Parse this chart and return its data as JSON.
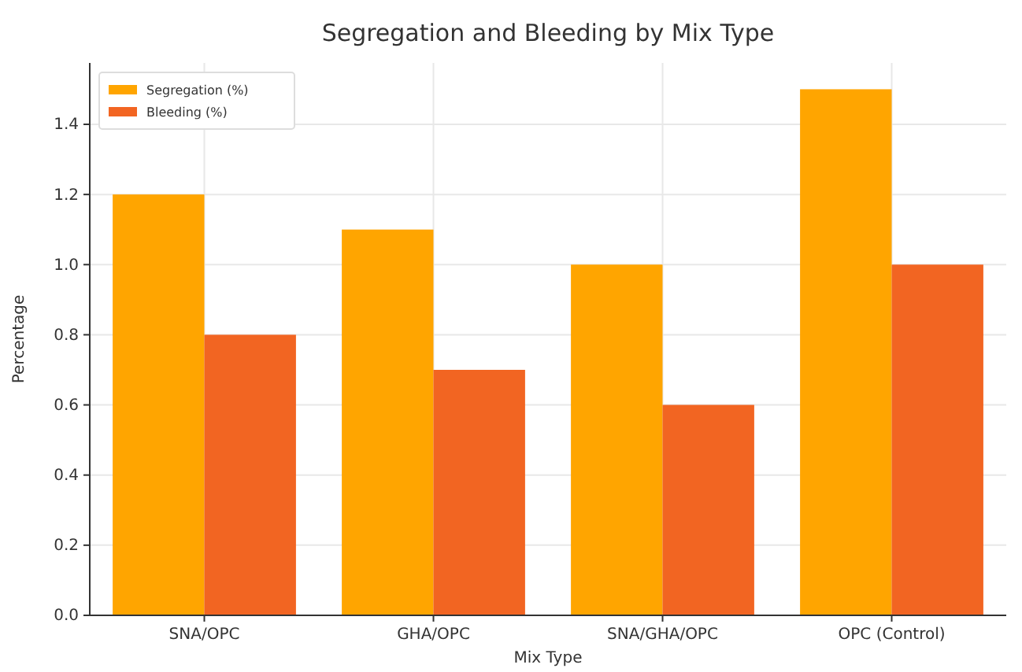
{
  "chart_data": {
    "type": "bar",
    "title": "Segregation and Bleeding by Mix Type",
    "xlabel": "Mix Type",
    "ylabel": "Percentage",
    "categories": [
      "SNA/OPC",
      "GHA/OPC",
      "SNA/GHA/OPC",
      "OPC (Control)"
    ],
    "series": [
      {
        "name": "Segregation (%)",
        "color": "#ffa500",
        "values": [
          1.2,
          1.1,
          1.0,
          1.5
        ]
      },
      {
        "name": "Bleeding (%)",
        "color": "#f26522",
        "values": [
          0.8,
          0.7,
          0.6,
          1.0
        ]
      }
    ],
    "ylim": [
      0,
      1.575
    ],
    "yticks": [
      {
        "value": 0,
        "label": "0.0"
      },
      {
        "value": 0.2,
        "label": "0.2"
      },
      {
        "value": 0.4,
        "label": "0.4"
      },
      {
        "value": 0.6,
        "label": "0.6"
      },
      {
        "value": 0.8,
        "label": "0.8"
      },
      {
        "value": 1.0,
        "label": "1.0"
      },
      {
        "value": 1.2,
        "label": "1.2"
      },
      {
        "value": 1.4,
        "label": "1.4"
      }
    ],
    "grid": true,
    "legend": "top left"
  }
}
